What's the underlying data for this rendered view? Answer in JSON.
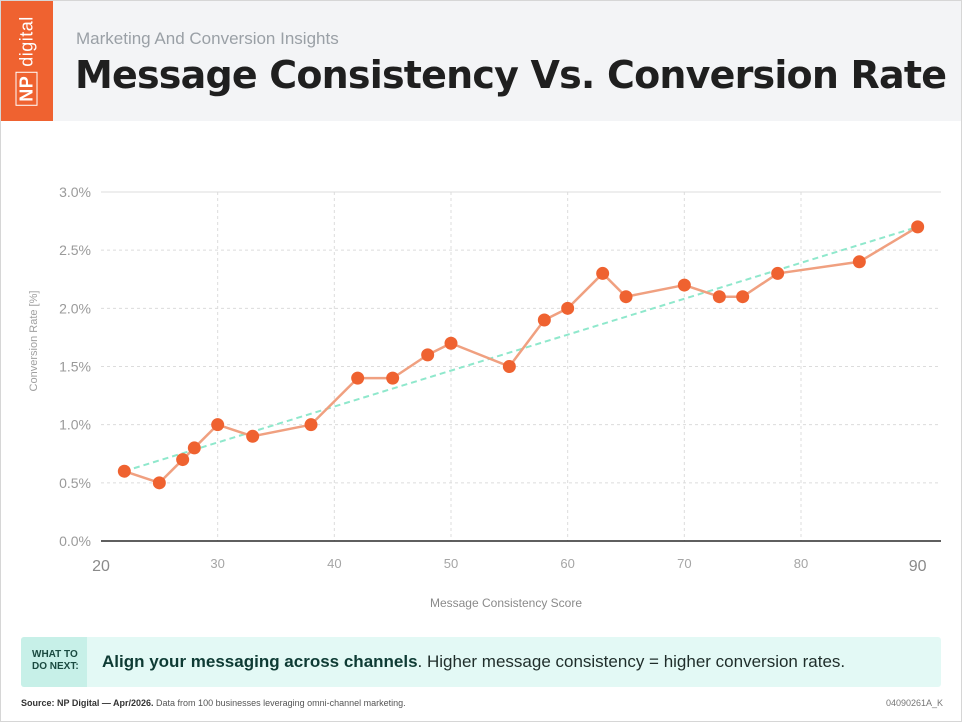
{
  "header": {
    "logo_np": "NP",
    "logo_digital": "digital",
    "subtitle": "Marketing And Conversion Insights",
    "title": "Message Consistency Vs. Conversion Rate"
  },
  "callout": {
    "tag": "WHAT TO\nDO NEXT:",
    "bold": "Align your messaging across channels",
    "rest": ". Higher message consistency = higher conversion rates."
  },
  "footer": {
    "source_bold": "Source: NP Digital — Apr/2026.",
    "source_rest": " Data from 100 businesses leveraging omni-channel marketing.",
    "code": "04090261A_K"
  },
  "colors": {
    "accent": "#ef6230",
    "line": "#f0a080",
    "trend": "#8fe8cc",
    "grid": "#dcdcdc"
  },
  "chart_data": {
    "type": "line",
    "xlabel": "Message Consistency Score",
    "ylabel": "Conversion Rate [%]",
    "xlim": [
      20,
      92
    ],
    "ylim": [
      0,
      3.0
    ],
    "x_ticks": [
      20,
      30,
      40,
      50,
      60,
      70,
      80,
      90
    ],
    "y_ticks": [
      "0.0%",
      "0.5%",
      "1.0%",
      "1.5%",
      "2.0%",
      "2.5%",
      "3.0%"
    ],
    "grid": true,
    "series": [
      {
        "x": [
          22,
          25,
          27,
          28,
          30,
          33,
          38,
          42,
          45,
          48,
          50,
          55,
          58,
          60,
          63,
          65,
          70,
          73,
          75,
          78,
          85,
          90
        ],
        "y": [
          0.6,
          0.5,
          0.7,
          0.8,
          1.0,
          0.9,
          1.0,
          1.4,
          1.4,
          1.6,
          1.7,
          1.5,
          1.9,
          2.0,
          2.3,
          2.1,
          2.2,
          2.1,
          2.1,
          2.3,
          2.4,
          2.7
        ]
      }
    ],
    "trendline": {
      "x": [
        22,
        90
      ],
      "y": [
        0.6,
        2.7
      ]
    }
  }
}
